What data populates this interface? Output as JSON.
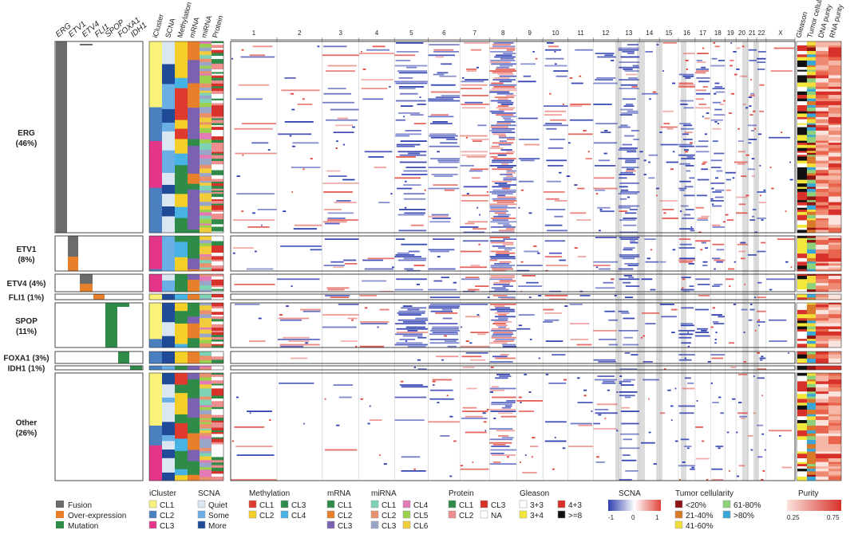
{
  "chart_data": {
    "type": "heatmap",
    "title": "",
    "subtypes": [
      {
        "label": "ERG",
        "pct": "(46%)"
      },
      {
        "label": "ETV1",
        "pct": "(8%)"
      },
      {
        "label": "ETV4 (4%)",
        "pct": ""
      },
      {
        "label": "FLI1 (1%)",
        "pct": ""
      },
      {
        "label": "SPOP",
        "pct": "(11%)"
      },
      {
        "label": "FOXA1 (3%)",
        "pct": ""
      },
      {
        "label": "IDH1 (1%)",
        "pct": ""
      },
      {
        "label": "Other",
        "pct": "(26%)"
      }
    ],
    "subtype_fraction_pct": [
      46,
      8,
      4,
      1,
      11,
      3,
      1,
      26
    ],
    "alteration_genes": [
      "ERG",
      "ETV1",
      "ETV4",
      "FLI1",
      "SPOP",
      "FOXA1",
      "IDH1"
    ],
    "alteration_types": {
      "fusion": "Fusion",
      "overexpression": "Over-expression",
      "mutation": "Mutation"
    },
    "cluster_tracks": [
      "iCluster",
      "SCNA",
      "Methylation",
      "mRNA",
      "miRNA",
      "Protein"
    ],
    "chromosomes": [
      "1",
      "2",
      "3",
      "4",
      "5",
      "6",
      "7",
      "8",
      "9",
      "10",
      "11",
      "12",
      "13",
      "14",
      "15",
      "16",
      "17",
      "18",
      "19",
      "20",
      "21",
      "22",
      "X"
    ],
    "clinical_tracks": [
      "Gleason",
      "Tumor cellularity",
      "DNA purity",
      "RNA purity"
    ],
    "legends": {
      "icluster": {
        "title": "iCluster",
        "items": [
          "CL1",
          "CL2",
          "CL3"
        ]
      },
      "scna": {
        "title": "SCNA",
        "items": [
          "Quiet",
          "Some",
          "More"
        ]
      },
      "methylation": {
        "title": "Methylation",
        "items": [
          "CL1",
          "CL2",
          "CL3",
          "CL4"
        ]
      },
      "mrna": {
        "title": "mRNA",
        "items": [
          "CL1",
          "CL2",
          "CL3"
        ]
      },
      "mirna": {
        "title": "miRNA",
        "items": [
          "CL1",
          "CL2",
          "CL3",
          "CL4",
          "CL5",
          "CL6"
        ]
      },
      "protein": {
        "title": "Protein",
        "items": [
          "CL1",
          "CL2",
          "CL3",
          "NA"
        ]
      },
      "gleason": {
        "title": "Gleason",
        "items": [
          "3+3",
          "3+4",
          "4+3",
          ">=8"
        ]
      },
      "scna_scale": {
        "title": "SCNA",
        "min": "-1",
        "mid": "0",
        "max": "1"
      },
      "tumor_cellularity": {
        "title": "Tumor cellularity",
        "items": [
          "<20%",
          "21-40%",
          "41-60%",
          "61-80%",
          ">80%"
        ]
      },
      "purity": {
        "title": "Purity",
        "min": "0.25",
        "max": "0.75"
      }
    }
  },
  "colors": {
    "fusion": "#6b6b6b",
    "overexpression": "#e87f2a",
    "mutation": "#2e8b48",
    "gain": "#e0453c",
    "loss": "#2f3fb0",
    "icluster": [
      "#fbf27a",
      "#4a7fc0",
      "#e33689"
    ],
    "scna": [
      "#dbe6f3",
      "#6aaee6",
      "#1f4a97"
    ],
    "methylation": [
      "#e03a2f",
      "#f4cf27",
      "#2e8b48",
      "#47b3e4"
    ],
    "mrna": [
      "#2e8b48",
      "#e87f2a",
      "#7b62b0"
    ],
    "mirna": [
      "#7fd3b5",
      "#e9916f",
      "#9aa6c8",
      "#e27bb6",
      "#9bd14d",
      "#f1cd3b"
    ],
    "protein": [
      "#2e8b48",
      "#ef8e8e",
      "#d8312a",
      "#ffffff"
    ],
    "gleason": [
      "#ffffff",
      "#f2e73a",
      "#d8312a",
      "#111111"
    ],
    "cellularity": [
      "#8e1414",
      "#d87a2a",
      "#f2dc3a",
      "#8fd07a",
      "#3aa6d8"
    ]
  }
}
